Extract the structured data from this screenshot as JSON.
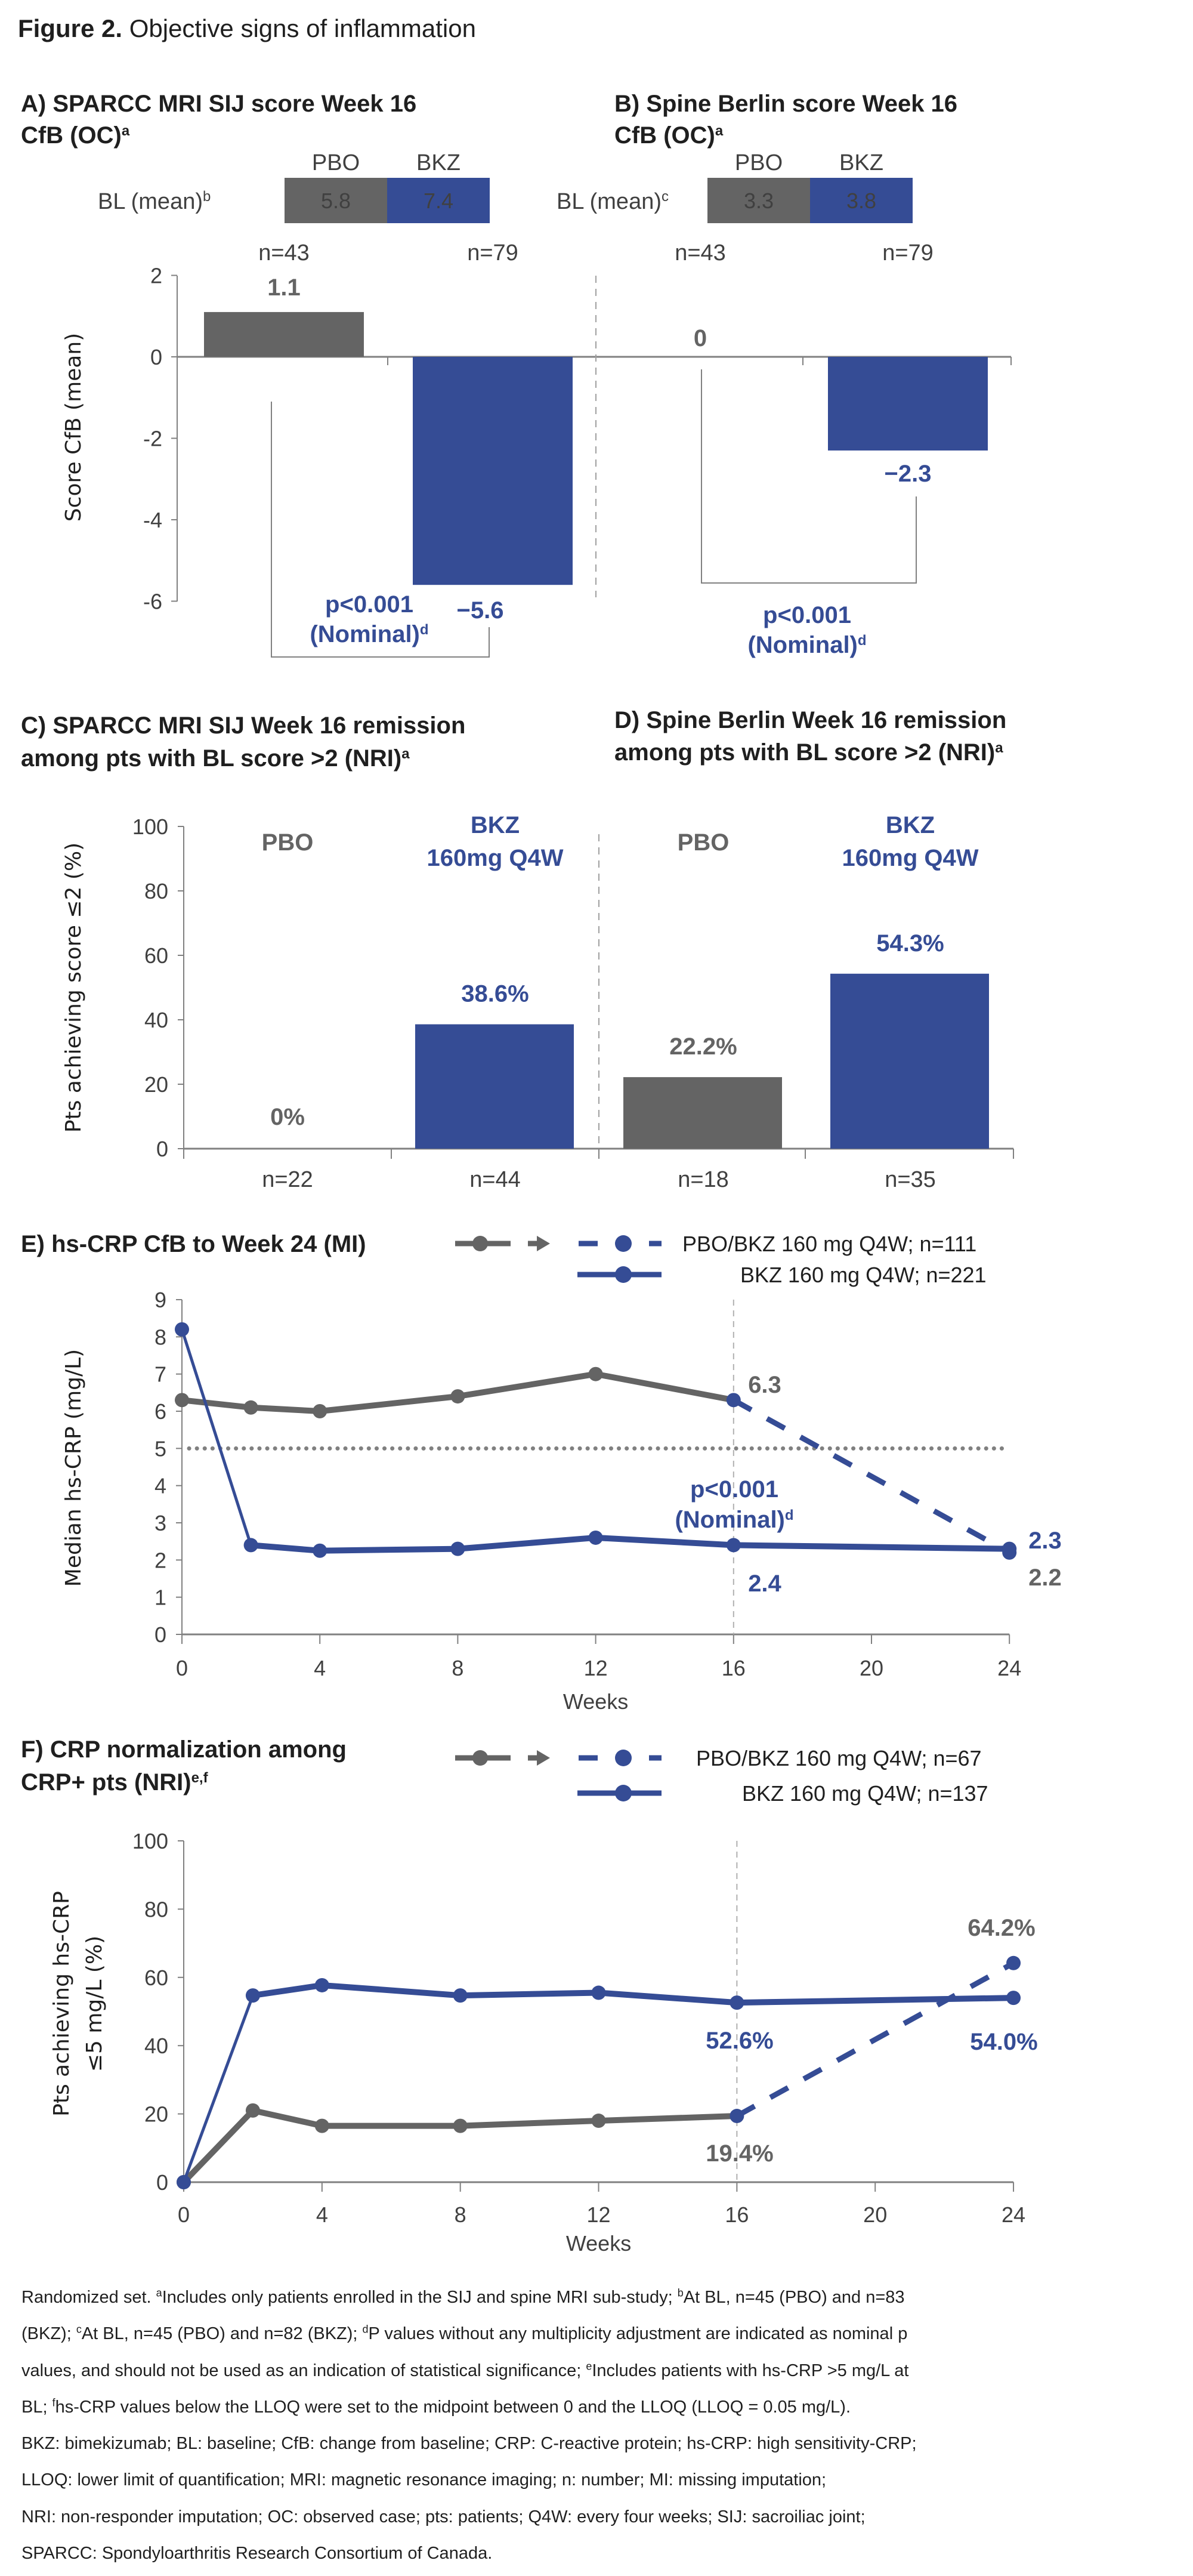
{
  "figure": {
    "label": "Figure 2.",
    "title": " Objective signs of inflammation"
  },
  "colors": {
    "pbo": "#646464",
    "bkz": "#354c95",
    "axis": "#808080",
    "text": "#1f1f1f"
  },
  "chart_data": [
    {
      "id": "A",
      "type": "bar",
      "title_lines": [
        "A) SPARCC MRI SIJ score Week 16",
        "CfB (OC)"
      ],
      "title_sup": "a",
      "baseline": {
        "label": "BL (mean)",
        "sup": "b",
        "groups": [
          "PBO",
          "BKZ"
        ],
        "values": [
          "5.8",
          "7.4"
        ]
      },
      "categories": [
        "PBO",
        "BKZ"
      ],
      "n_labels": [
        "n=43",
        "n=79"
      ],
      "values": [
        1.1,
        -5.6
      ],
      "value_labels": [
        "1.1",
        "−5.6"
      ],
      "ylabel": "Score CfB (mean)",
      "ylim": [
        -6,
        2
      ],
      "yticks": [
        "2",
        "0",
        "-2",
        "-4",
        "-6"
      ],
      "annotation": {
        "line1": "p<0.001",
        "line2": "(Nominal)",
        "sup": "d"
      }
    },
    {
      "id": "B",
      "type": "bar",
      "title_lines": [
        "B) Spine Berlin score Week 16",
        "CfB (OC)"
      ],
      "title_sup": "a",
      "baseline": {
        "label": "BL (mean)",
        "sup": "c",
        "groups": [
          "PBO",
          "BKZ"
        ],
        "values": [
          "3.3",
          "3.8"
        ]
      },
      "categories": [
        "PBO",
        "BKZ"
      ],
      "n_labels": [
        "n=43",
        "n=79"
      ],
      "values": [
        0,
        -2.3
      ],
      "value_labels": [
        "0",
        "−2.3"
      ],
      "ylim": [
        -6,
        2
      ],
      "annotation": {
        "line1": "p<0.001",
        "line2": "(Nominal)",
        "sup": "d"
      }
    },
    {
      "id": "C",
      "type": "bar",
      "title_lines": [
        "C) SPARCC MRI SIJ Week 16 remission",
        "among pts with BL score >2 (NRI)"
      ],
      "title_sup": "a",
      "group_labels": [
        {
          "name": "PBO"
        },
        {
          "name": "BKZ",
          "sub": "160mg Q4W"
        }
      ],
      "categories": [
        "PBO",
        "BKZ"
      ],
      "n_labels": [
        "n=22",
        "n=44"
      ],
      "values": [
        0,
        38.6
      ],
      "value_labels": [
        "0%",
        "38.6%"
      ],
      "ylabel": "Pts achieving score ≤2 (%)",
      "ylim": [
        0,
        100
      ],
      "yticks": [
        "0",
        "20",
        "40",
        "60",
        "80",
        "100"
      ]
    },
    {
      "id": "D",
      "type": "bar",
      "title_lines": [
        "D) Spine Berlin Week 16 remission",
        "among pts with BL score >2 (NRI)"
      ],
      "title_sup": "a",
      "group_labels": [
        {
          "name": "PBO"
        },
        {
          "name": "BKZ",
          "sub": "160mg Q4W"
        }
      ],
      "categories": [
        "PBO",
        "BKZ"
      ],
      "n_labels": [
        "n=18",
        "n=35"
      ],
      "values": [
        22.2,
        54.3
      ],
      "value_labels": [
        "22.2%",
        "54.3%"
      ],
      "ylim": [
        0,
        100
      ]
    },
    {
      "id": "E",
      "type": "line",
      "title_lines": [
        "E) hs-CRP CfB to Week 24 (MI)"
      ],
      "xlabel": "Weeks",
      "ylabel": "Median hs-CRP (mg/L)",
      "xlim": [
        0,
        24
      ],
      "xticks": [
        "0",
        "4",
        "8",
        "12",
        "16",
        "20",
        "24"
      ],
      "ylim": [
        0,
        9
      ],
      "yticks": [
        "0",
        "1",
        "2",
        "3",
        "4",
        "5",
        "6",
        "7",
        "8",
        "9"
      ],
      "reference_line_y": 5,
      "switch_week": 16,
      "series": [
        {
          "name": "PBO/BKZ 160 mg Q4W; n=111",
          "x": [
            0,
            2,
            4,
            8,
            12,
            16,
            24
          ],
          "y": [
            6.3,
            6.1,
            6.0,
            6.4,
            7.0,
            6.3,
            2.2
          ]
        },
        {
          "name": "BKZ 160 mg Q4W; n=221",
          "x": [
            0,
            2,
            4,
            8,
            12,
            16,
            24
          ],
          "y": [
            8.2,
            2.4,
            2.25,
            2.3,
            2.6,
            2.4,
            2.3
          ]
        }
      ],
      "data_labels": [
        {
          "text": "6.3",
          "series": 0,
          "week": 16
        },
        {
          "text": "2.4",
          "series": 1,
          "week": 16
        },
        {
          "text": "2.3",
          "series": 1,
          "week": 24
        },
        {
          "text": "2.2",
          "series": 0,
          "week": 24
        }
      ],
      "annotation": {
        "line1": "p<0.001",
        "line2": "(Nominal)",
        "sup": "d"
      }
    },
    {
      "id": "F",
      "type": "line",
      "title_lines": [
        "F) CRP normalization among",
        "CRP+ pts (NRI)"
      ],
      "title_sup": "e,f",
      "xlabel": "Weeks",
      "ylabel_lines": [
        "Pts achieving hs-CRP",
        "≤5 mg/L (%)"
      ],
      "xlim": [
        0,
        24
      ],
      "xticks": [
        "0",
        "4",
        "8",
        "12",
        "16",
        "20",
        "24"
      ],
      "ylim": [
        0,
        100
      ],
      "yticks": [
        "0",
        "20",
        "40",
        "60",
        "80",
        "100"
      ],
      "switch_week": 16,
      "series": [
        {
          "name": "PBO/BKZ 160 mg Q4W; n=67",
          "x": [
            0,
            2,
            4,
            8,
            12,
            16,
            24
          ],
          "y": [
            0,
            21.0,
            16.5,
            16.5,
            18.0,
            19.4,
            64.2
          ]
        },
        {
          "name": "BKZ 160 mg Q4W; n=137",
          "x": [
            0,
            2,
            4,
            8,
            12,
            16,
            24
          ],
          "y": [
            0,
            54.7,
            57.7,
            54.7,
            55.5,
            52.6,
            54.0
          ]
        }
      ],
      "data_labels": [
        {
          "text": "64.2%",
          "series": 0,
          "week": 24
        },
        {
          "text": "52.6%",
          "series": 1,
          "week": 16
        },
        {
          "text": "54.0%",
          "series": 1,
          "week": 24
        },
        {
          "text": "19.4%",
          "series": 0,
          "week": 16
        }
      ]
    }
  ],
  "footnotes": [
    [
      {
        "t": "Randomized set. "
      },
      {
        "s": "a"
      },
      {
        "t": "Includes only patients enrolled in the SIJ and spine MRI sub-study; "
      },
      {
        "s": "b"
      },
      {
        "t": "At BL, n=45 (PBO) and n=83"
      }
    ],
    [
      {
        "t": "(BKZ); "
      },
      {
        "s": "c"
      },
      {
        "t": "At BL, n=45 (PBO) and n=82 (BKZ); "
      },
      {
        "s": "d"
      },
      {
        "t": "P values without any multiplicity adjustment are indicated as nominal p"
      }
    ],
    [
      {
        "t": "values, and should not be used as an indication of statistical significance; "
      },
      {
        "s": "e"
      },
      {
        "t": "Includes patients with hs-CRP >5 mg/L at"
      }
    ],
    [
      {
        "t": "BL; "
      },
      {
        "s": "f"
      },
      {
        "t": "hs-CRP values below the LLOQ were set to the midpoint between 0 and the LLOQ (LLOQ = 0.05 mg/L)."
      }
    ],
    [
      {
        "t": "BKZ: bimekizumab; BL: baseline; CfB: change from baseline; CRP: C-reactive protein; hs-CRP: high sensitivity-CRP;"
      }
    ],
    [
      {
        "t": "LLOQ: lower limit of quantification; MRI: magnetic resonance imaging; n: number; MI: missing imputation;"
      }
    ],
    [
      {
        "t": "NRI: non-responder imputation; OC: observed case; pts: patients; Q4W: every four weeks; SIJ: sacroiliac joint;"
      }
    ],
    [
      {
        "t": "SPARCC: Spondyloarthritis Research Consortium of Canada."
      }
    ]
  ]
}
